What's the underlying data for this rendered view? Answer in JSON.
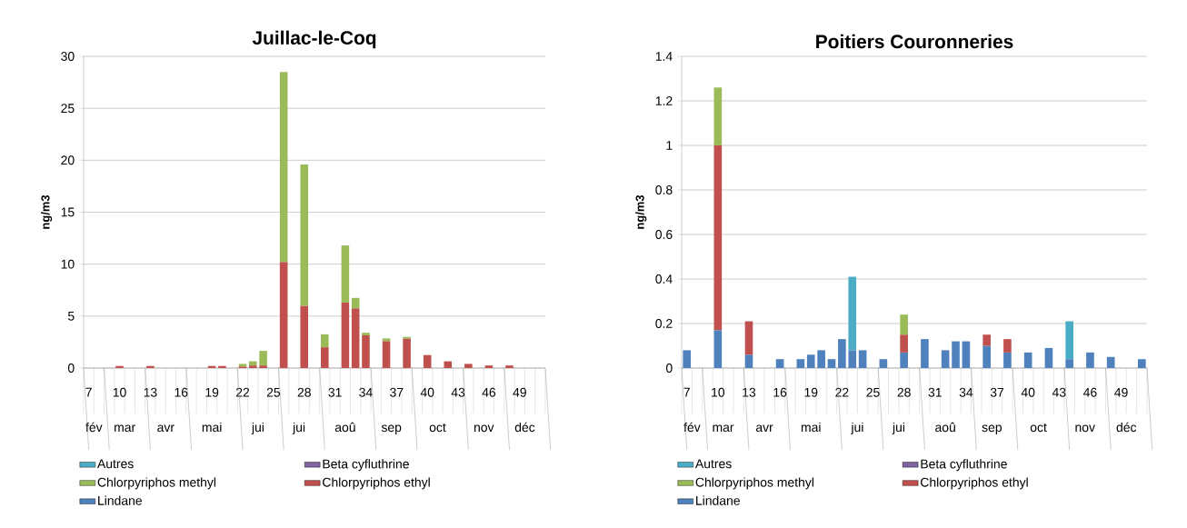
{
  "chart_data": [
    {
      "type": "bar",
      "stacked": true,
      "title": "Juillac-le-Coq",
      "ylabel": "ng/m3",
      "categories": [
        "7",
        null,
        null,
        "10",
        null,
        null,
        "13",
        null,
        null,
        "16",
        null,
        null,
        "19",
        null,
        null,
        "22",
        null,
        null,
        "25",
        null,
        null,
        "28",
        null,
        null,
        "31",
        null,
        null,
        "34",
        null,
        null,
        "37",
        null,
        null,
        "40",
        null,
        null,
        "43",
        null,
        null,
        "46",
        null,
        null,
        "49",
        null,
        null
      ],
      "series": [
        {
          "name": "Lindane",
          "color": "#4f81bd",
          "values": [
            null,
            null,
            null,
            null,
            null,
            null,
            null,
            null,
            null,
            null,
            null,
            null,
            null,
            null,
            null,
            null,
            null,
            null,
            null,
            null,
            null,
            null,
            null,
            null,
            null,
            null,
            null,
            null,
            null,
            null,
            null,
            null,
            null,
            null,
            null,
            null,
            null,
            null,
            null,
            null,
            null,
            null,
            null,
            null,
            null
          ]
        },
        {
          "name": "Chlorpyriphos ethyl",
          "color": "#c0504d",
          "values": [
            null,
            null,
            null,
            0.2,
            null,
            null,
            0.2,
            null,
            null,
            null,
            null,
            null,
            0.2,
            0.2,
            null,
            0.15,
            0.25,
            0.25,
            null,
            10.2,
            null,
            6,
            null,
            2,
            null,
            6.3,
            5.75,
            3.15,
            null,
            2.6,
            null,
            2.85,
            null,
            1.25,
            null,
            0.65,
            null,
            0.4,
            null,
            0.25,
            null,
            0.25,
            null,
            null,
            null
          ]
        },
        {
          "name": "Chlorpyriphos methyl",
          "color": "#9bbb59",
          "values": [
            null,
            null,
            null,
            null,
            null,
            null,
            null,
            null,
            null,
            null,
            null,
            null,
            null,
            null,
            null,
            0.25,
            0.4,
            1.4,
            null,
            18.3,
            null,
            13.6,
            null,
            1.25,
            null,
            5.5,
            1,
            0.25,
            null,
            0.25,
            null,
            0.15,
            null,
            null,
            null,
            null,
            null,
            null,
            null,
            null,
            null,
            null,
            null,
            null,
            null
          ]
        },
        {
          "name": "Beta cyfluthrine",
          "color": "#8064a2",
          "values": [
            null,
            null,
            null,
            null,
            null,
            null,
            null,
            null,
            null,
            null,
            null,
            null,
            null,
            null,
            null,
            null,
            null,
            null,
            null,
            null,
            null,
            null,
            null,
            null,
            null,
            null,
            null,
            null,
            null,
            null,
            null,
            null,
            null,
            null,
            null,
            null,
            null,
            null,
            null,
            null,
            null,
            null,
            null,
            null,
            null
          ]
        },
        {
          "name": "Autres",
          "color": "#4bacc6",
          "values": [
            null,
            null,
            null,
            null,
            null,
            null,
            null,
            null,
            null,
            null,
            null,
            null,
            null,
            null,
            null,
            null,
            null,
            null,
            null,
            null,
            null,
            null,
            null,
            null,
            null,
            null,
            null,
            null,
            null,
            null,
            null,
            null,
            null,
            null,
            null,
            null,
            null,
            null,
            null,
            null,
            null,
            null,
            null,
            null,
            null
          ]
        }
      ],
      "ylim": [
        0,
        30
      ],
      "yticks": [
        0,
        5,
        10,
        15,
        20,
        25,
        30
      ],
      "grid": "y",
      "legend": "bottom",
      "annotations": [
        "fév",
        "mar",
        "avr",
        "mai",
        "jui",
        "jui",
        "aoû",
        "sep",
        "oct",
        "nov",
        "déc"
      ]
    },
    {
      "type": "bar",
      "stacked": true,
      "title": "Poitiers Couronneries",
      "ylabel": "ng/m3",
      "categories": [
        "7",
        null,
        null,
        "10",
        null,
        null,
        "13",
        null,
        null,
        "16",
        null,
        null,
        "19",
        null,
        null,
        "22",
        null,
        null,
        "25",
        null,
        null,
        "28",
        null,
        null,
        "31",
        null,
        null,
        "34",
        null,
        null,
        "37",
        null,
        null,
        "40",
        null,
        null,
        "43",
        null,
        null,
        "46",
        null,
        null,
        "49",
        null,
        null
      ],
      "series": [
        {
          "name": "Lindane",
          "color": "#4f81bd",
          "values": [
            0.08,
            null,
            null,
            0.17,
            null,
            null,
            0.06,
            null,
            null,
            0.04,
            null,
            0.04,
            0.06,
            0.08,
            0.04,
            0.13,
            0.08,
            0.08,
            null,
            0.04,
            null,
            0.07,
            null,
            0.13,
            null,
            0.08,
            0.12,
            0.12,
            null,
            0.1,
            null,
            0.07,
            null,
            0.07,
            null,
            0.09,
            null,
            0.04,
            null,
            0.07,
            null,
            0.05,
            null,
            null,
            0.04
          ]
        },
        {
          "name": "Chlorpyriphos ethyl",
          "color": "#c0504d",
          "values": [
            null,
            null,
            null,
            0.83,
            null,
            null,
            0.15,
            null,
            null,
            null,
            null,
            null,
            null,
            null,
            null,
            null,
            null,
            null,
            null,
            null,
            null,
            0.08,
            null,
            null,
            null,
            null,
            null,
            null,
            null,
            0.05,
            null,
            0.06,
            null,
            null,
            null,
            null,
            null,
            null,
            null,
            null,
            null,
            null,
            null,
            null,
            null
          ]
        },
        {
          "name": "Chlorpyriphos methyl",
          "color": "#9bbb59",
          "values": [
            null,
            null,
            null,
            0.26,
            null,
            null,
            null,
            null,
            null,
            null,
            null,
            null,
            null,
            null,
            null,
            null,
            null,
            null,
            null,
            null,
            null,
            0.09,
            null,
            null,
            null,
            null,
            null,
            null,
            null,
            null,
            null,
            null,
            null,
            null,
            null,
            null,
            null,
            null,
            null,
            null,
            null,
            null,
            null,
            null,
            null
          ]
        },
        {
          "name": "Beta cyfluthrine",
          "color": "#8064a2",
          "values": [
            null,
            null,
            null,
            null,
            null,
            null,
            null,
            null,
            null,
            null,
            null,
            null,
            null,
            null,
            null,
            null,
            null,
            null,
            null,
            null,
            null,
            null,
            null,
            null,
            null,
            null,
            null,
            null,
            null,
            null,
            null,
            null,
            null,
            null,
            null,
            null,
            null,
            null,
            null,
            null,
            null,
            null,
            null,
            null,
            null
          ]
        },
        {
          "name": "Autres",
          "color": "#4bacc6",
          "values": [
            null,
            null,
            null,
            null,
            null,
            null,
            null,
            null,
            null,
            null,
            null,
            null,
            null,
            null,
            null,
            null,
            0.33,
            null,
            null,
            null,
            null,
            null,
            null,
            null,
            null,
            null,
            null,
            null,
            null,
            null,
            null,
            null,
            null,
            null,
            null,
            null,
            null,
            0.17,
            null,
            null,
            null,
            null,
            null,
            null,
            null
          ]
        }
      ],
      "ylim": [
        0,
        1.4
      ],
      "yticks": [
        0,
        0.2,
        0.4,
        0.6,
        0.8,
        1,
        1.2,
        1.4
      ],
      "grid": "y",
      "legend": "bottom",
      "annotations": [
        "fév",
        "mar",
        "avr",
        "mai",
        "jui",
        "jui",
        "aoû",
        "sep",
        "oct",
        "nov",
        "déc"
      ]
    }
  ]
}
